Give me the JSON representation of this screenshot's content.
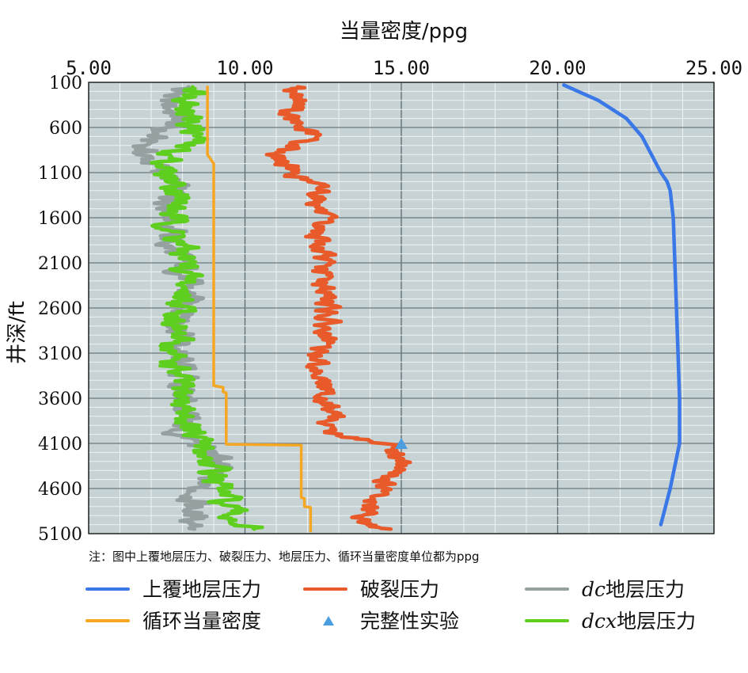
{
  "chart_data": {
    "type": "line",
    "title": "当量密度/ppg",
    "ylabel": "井深/ft",
    "x_ticks": [
      "5.00",
      "10.00",
      "15.00",
      "20.00",
      "25.00"
    ],
    "y_ticks": [
      "100",
      "600",
      "1100",
      "1600",
      "2100",
      "2600",
      "3100",
      "3600",
      "4100",
      "4600",
      "5100"
    ],
    "xlim": [
      5,
      25
    ],
    "ylim": [
      100,
      5100
    ],
    "x_axis_position": "top",
    "y_axis_inverted": true,
    "grid": true,
    "note": "注：图中上覆地层压力、破裂压力、地层压力、循环当量密度单位都为ppg",
    "legend_position": "bottom",
    "series": [
      {
        "name": "上覆地层压力",
        "color": "#3a78e8",
        "depth": [
          130,
          300,
          500,
          700,
          900,
          1100,
          1200,
          1300,
          1600,
          2100,
          2600,
          3100,
          3600,
          4100,
          4600,
          5000
        ],
        "values": [
          20.2,
          21.3,
          22.2,
          22.7,
          23.0,
          23.3,
          23.5,
          23.6,
          23.7,
          23.75,
          23.8,
          23.85,
          23.9,
          23.9,
          23.6,
          23.3
        ]
      },
      {
        "name": "破裂压力",
        "color": "#e85a2a",
        "depth": [
          150,
          300,
          500,
          700,
          900,
          1100,
          1300,
          1600,
          2100,
          2600,
          3100,
          3600,
          4000,
          4100,
          4300,
          4600,
          4900,
          5050
        ],
        "values": [
          11.5,
          11.8,
          11.3,
          12.2,
          11.0,
          11.5,
          12.5,
          12.3,
          12.4,
          12.7,
          12.3,
          12.6,
          12.8,
          14.5,
          15.0,
          14.3,
          13.8,
          14.3
        ]
      },
      {
        "name": "dc地层压力",
        "italic_prefix": "dc",
        "rest": "地层压力",
        "color": "#95a0a0",
        "depth": [
          150,
          300,
          500,
          700,
          900,
          1100,
          1300,
          1600,
          1900,
          2100,
          2600,
          3100,
          3600,
          4000,
          4100,
          4300,
          4600,
          4900,
          5050
        ],
        "values": [
          8.2,
          7.4,
          7.9,
          7.0,
          6.7,
          7.4,
          7.7,
          7.8,
          7.5,
          8.0,
          8.2,
          7.8,
          8.1,
          7.8,
          8.5,
          9.2,
          8.5,
          8.3,
          8.6
        ]
      },
      {
        "name": "dcx地层压力",
        "italic_prefix": "dcx",
        "rest": "地层压力",
        "color": "#5ecf1e",
        "depth": [
          150,
          300,
          500,
          700,
          900,
          1100,
          1300,
          1600,
          1900,
          2100,
          2600,
          3100,
          3600,
          4000,
          4100,
          4300,
          4600,
          4900,
          5050
        ],
        "values": [
          8.6,
          8.4,
          8.2,
          8.5,
          7.6,
          7.4,
          8.0,
          7.6,
          7.9,
          8.1,
          8.0,
          7.6,
          8.0,
          8.2,
          8.6,
          8.8,
          9.2,
          9.5,
          10.2
        ]
      },
      {
        "name": "循环当量密度",
        "color": "#f5a623",
        "depth": [
          150,
          900,
          1000,
          3460,
          3480,
          3530,
          3540,
          4080,
          4090,
          4110,
          4120,
          4700,
          4710,
          4800,
          4810,
          5070
        ],
        "values": [
          8.8,
          8.8,
          9.0,
          9.0,
          9.3,
          9.3,
          9.4,
          9.4,
          9.4,
          9.4,
          11.8,
          11.8,
          11.9,
          11.9,
          12.1,
          12.1
        ]
      }
    ],
    "markers": [
      {
        "name": "完整性实验",
        "color": "#4a9ee0",
        "shape": "triangle",
        "depth": 4100,
        "value": 15.0
      }
    ]
  },
  "legend": [
    {
      "label": "上覆地层压力",
      "italic": "",
      "color": "#3a78e8",
      "symbol": "line"
    },
    {
      "label": "破裂压力",
      "italic": "",
      "color": "#e85a2a",
      "symbol": "line"
    },
    {
      "label": "地层压力",
      "italic": "dc",
      "color": "#95a0a0",
      "symbol": "line"
    },
    {
      "label": "循环当量密度",
      "italic": "",
      "color": "#f5a623",
      "symbol": "line"
    },
    {
      "label": "完整性实验",
      "italic": "",
      "color": "#4a9ee0",
      "symbol": "triangle"
    },
    {
      "label": "地层压力",
      "italic": "dcx",
      "color": "#5ecf1e",
      "symbol": "line"
    }
  ]
}
